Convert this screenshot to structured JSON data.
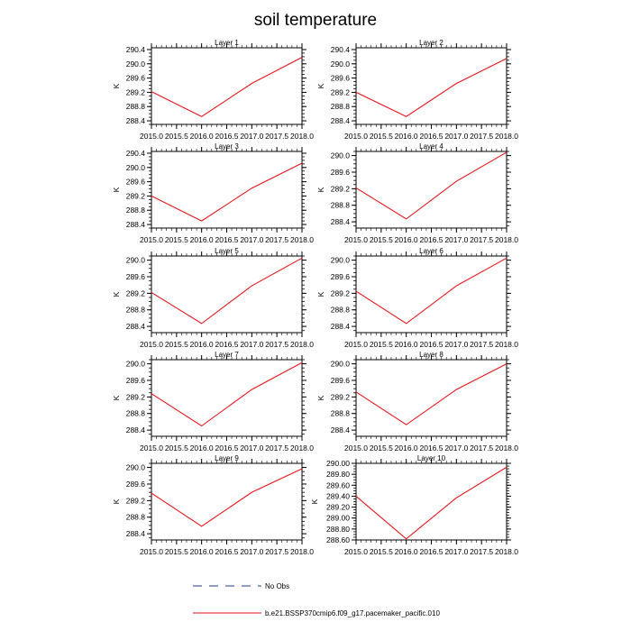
{
  "colors": {
    "series": "#e8141c",
    "axis": "#000000",
    "background": "#ffffff"
  },
  "chart_data": {
    "type": "line",
    "title": "soil temperature",
    "legend": [
      {
        "label": "No Obs",
        "style": "dashed",
        "color": "#1f3a8a"
      },
      {
        "label": "b.e21.BSSP370cmip6.f09_g17.pacemaker_pacific.010",
        "style": "solid",
        "color": "#e8141c"
      }
    ],
    "panels": [
      {
        "title": "Layer 1",
        "ylabel": "K",
        "x": [
          2015.0,
          2016.0,
          2017.0,
          2018.0
        ],
        "y": [
          289.22,
          288.52,
          289.45,
          290.18
        ],
        "xlim": [
          2015.0,
          2018.0
        ],
        "ylim": [
          288.3,
          290.45
        ],
        "yticks": [
          288.4,
          288.8,
          289.2,
          289.6,
          290.0,
          290.4
        ],
        "ytick_labels": [
          "288.4",
          "288.8",
          "289.2",
          "289.6",
          "290.0",
          "290.4"
        ],
        "xticks": [
          2015.0,
          2015.5,
          2016.0,
          2016.5,
          2017.0,
          2017.5,
          2018.0
        ],
        "xtick_labels": [
          "2015.0",
          "2015.5",
          "2016.0",
          "2016.5",
          "2017.0",
          "2017.5",
          "2018.0"
        ]
      },
      {
        "title": "Layer 2",
        "ylabel": "K",
        "x": [
          2015.0,
          2016.0,
          2017.0,
          2018.0
        ],
        "y": [
          289.2,
          288.52,
          289.45,
          290.15
        ],
        "xlim": [
          2015.0,
          2018.0
        ],
        "ylim": [
          288.3,
          290.45
        ],
        "yticks": [
          288.4,
          288.8,
          289.2,
          289.6,
          290.0,
          290.4
        ],
        "ytick_labels": [
          "288.4",
          "288.8",
          "289.2",
          "289.6",
          "290.0",
          "290.4"
        ],
        "xticks": [
          2015.0,
          2015.5,
          2016.0,
          2016.5,
          2017.0,
          2017.5,
          2018.0
        ],
        "xtick_labels": [
          "2015.0",
          "2015.5",
          "2016.0",
          "2016.5",
          "2017.0",
          "2017.5",
          "2018.0"
        ]
      },
      {
        "title": "Layer 3",
        "ylabel": "K",
        "x": [
          2015.0,
          2016.0,
          2017.0,
          2018.0
        ],
        "y": [
          289.2,
          288.5,
          289.42,
          290.12
        ],
        "xlim": [
          2015.0,
          2018.0
        ],
        "ylim": [
          288.3,
          290.45
        ],
        "yticks": [
          288.4,
          288.8,
          289.2,
          289.6,
          290.0,
          290.4
        ],
        "ytick_labels": [
          "288.4",
          "288.8",
          "289.2",
          "289.6",
          "290.0",
          "290.4"
        ],
        "xticks": [
          2015.0,
          2015.5,
          2016.0,
          2016.5,
          2017.0,
          2017.5,
          2018.0
        ],
        "xtick_labels": [
          "2015.0",
          "2015.5",
          "2016.0",
          "2016.5",
          "2017.0",
          "2017.5",
          "2018.0"
        ]
      },
      {
        "title": "Layer 4",
        "ylabel": "K",
        "x": [
          2015.0,
          2016.0,
          2017.0,
          2018.0
        ],
        "y": [
          289.22,
          288.47,
          289.38,
          290.08
        ],
        "xlim": [
          2015.0,
          2018.0
        ],
        "ylim": [
          288.25,
          290.1
        ],
        "yticks": [
          288.4,
          288.8,
          289.2,
          289.6,
          290.0
        ],
        "ytick_labels": [
          "288.4",
          "288.8",
          "289.2",
          "289.6",
          "290.0"
        ],
        "xticks": [
          2015.0,
          2015.5,
          2016.0,
          2016.5,
          2017.0,
          2017.5,
          2018.0
        ],
        "xtick_labels": [
          "2015.0",
          "2015.5",
          "2016.0",
          "2016.5",
          "2017.0",
          "2017.5",
          "2018.0"
        ]
      },
      {
        "title": "Layer 5",
        "ylabel": "K",
        "x": [
          2015.0,
          2016.0,
          2017.0,
          2018.0
        ],
        "y": [
          289.22,
          288.47,
          289.38,
          290.05
        ],
        "xlim": [
          2015.0,
          2018.0
        ],
        "ylim": [
          288.25,
          290.1
        ],
        "yticks": [
          288.4,
          288.8,
          289.2,
          289.6,
          290.0
        ],
        "ytick_labels": [
          "288.4",
          "288.8",
          "289.2",
          "289.6",
          "290.0"
        ],
        "xticks": [
          2015.0,
          2015.5,
          2016.0,
          2016.5,
          2017.0,
          2017.5,
          2018.0
        ],
        "xtick_labels": [
          "2015.0",
          "2015.5",
          "2016.0",
          "2016.5",
          "2017.0",
          "2017.5",
          "2018.0"
        ]
      },
      {
        "title": "Layer 6",
        "ylabel": "K",
        "x": [
          2015.0,
          2016.0,
          2017.0,
          2018.0
        ],
        "y": [
          289.25,
          288.47,
          289.38,
          290.05
        ],
        "xlim": [
          2015.0,
          2018.0
        ],
        "ylim": [
          288.25,
          290.1
        ],
        "yticks": [
          288.4,
          288.8,
          289.2,
          289.6,
          290.0
        ],
        "ytick_labels": [
          "288.4",
          "288.8",
          "289.2",
          "289.6",
          "290.0"
        ],
        "xticks": [
          2015.0,
          2015.5,
          2016.0,
          2016.5,
          2017.0,
          2017.5,
          2018.0
        ],
        "xtick_labels": [
          "2015.0",
          "2015.5",
          "2016.0",
          "2016.5",
          "2017.0",
          "2017.5",
          "2018.0"
        ]
      },
      {
        "title": "Layer 7",
        "ylabel": "K",
        "x": [
          2015.0,
          2016.0,
          2017.0,
          2018.0
        ],
        "y": [
          289.28,
          288.5,
          289.38,
          290.03
        ],
        "xlim": [
          2015.0,
          2018.0
        ],
        "ylim": [
          288.25,
          290.1
        ],
        "yticks": [
          288.4,
          288.8,
          289.2,
          289.6,
          290.0
        ],
        "ytick_labels": [
          "288.4",
          "288.8",
          "289.2",
          "289.6",
          "290.0"
        ],
        "xticks": [
          2015.0,
          2015.5,
          2016.0,
          2016.5,
          2017.0,
          2017.5,
          2018.0
        ],
        "xtick_labels": [
          "2015.0",
          "2015.5",
          "2016.0",
          "2016.5",
          "2017.0",
          "2017.5",
          "2018.0"
        ]
      },
      {
        "title": "Layer 8",
        "ylabel": "K",
        "x": [
          2015.0,
          2016.0,
          2017.0,
          2018.0
        ],
        "y": [
          289.32,
          288.53,
          289.38,
          290.0
        ],
        "xlim": [
          2015.0,
          2018.0
        ],
        "ylim": [
          288.25,
          290.1
        ],
        "yticks": [
          288.4,
          288.8,
          289.2,
          289.6,
          290.0
        ],
        "ytick_labels": [
          "288.4",
          "288.8",
          "289.2",
          "289.6",
          "290.0"
        ],
        "xticks": [
          2015.0,
          2015.5,
          2016.0,
          2016.5,
          2017.0,
          2017.5,
          2018.0
        ],
        "xtick_labels": [
          "2015.0",
          "2015.5",
          "2016.0",
          "2016.5",
          "2017.0",
          "2017.5",
          "2018.0"
        ]
      },
      {
        "title": "Layer 9",
        "ylabel": "K",
        "x": [
          2015.0,
          2016.0,
          2017.0,
          2018.0
        ],
        "y": [
          289.38,
          288.58,
          289.4,
          289.97
        ],
        "xlim": [
          2015.0,
          2018.0
        ],
        "ylim": [
          288.25,
          290.1
        ],
        "yticks": [
          288.4,
          288.8,
          289.2,
          289.6,
          290.0
        ],
        "ytick_labels": [
          "288.4",
          "288.8",
          "289.2",
          "289.6",
          "290.0"
        ],
        "xticks": [
          2015.0,
          2015.5,
          2016.0,
          2016.5,
          2017.0,
          2017.5,
          2018.0
        ],
        "xtick_labels": [
          "2015.0",
          "2015.5",
          "2016.0",
          "2016.5",
          "2017.0",
          "2017.5",
          "2018.0"
        ]
      },
      {
        "title": "Layer 10",
        "ylabel": "K",
        "x": [
          2015.0,
          2016.0,
          2017.0,
          2018.0
        ],
        "y": [
          289.4,
          288.62,
          289.37,
          289.93
        ],
        "xlim": [
          2015.0,
          2018.0
        ],
        "ylim": [
          288.6,
          290.0
        ],
        "yticks": [
          288.6,
          288.8,
          289.0,
          289.2,
          289.4,
          289.6,
          289.8,
          290.0
        ],
        "ytick_labels": [
          "288.60",
          "288.80",
          "289.00",
          "289.20",
          "289.40",
          "289.60",
          "289.80",
          "290.00"
        ],
        "xticks": [
          2015.0,
          2015.5,
          2016.0,
          2016.5,
          2017.0,
          2017.5,
          2018.0
        ],
        "xtick_labels": [
          "2015.0",
          "2015.5",
          "2016.0",
          "2016.5",
          "2017.0",
          "2017.5",
          "2018.0"
        ]
      }
    ]
  }
}
